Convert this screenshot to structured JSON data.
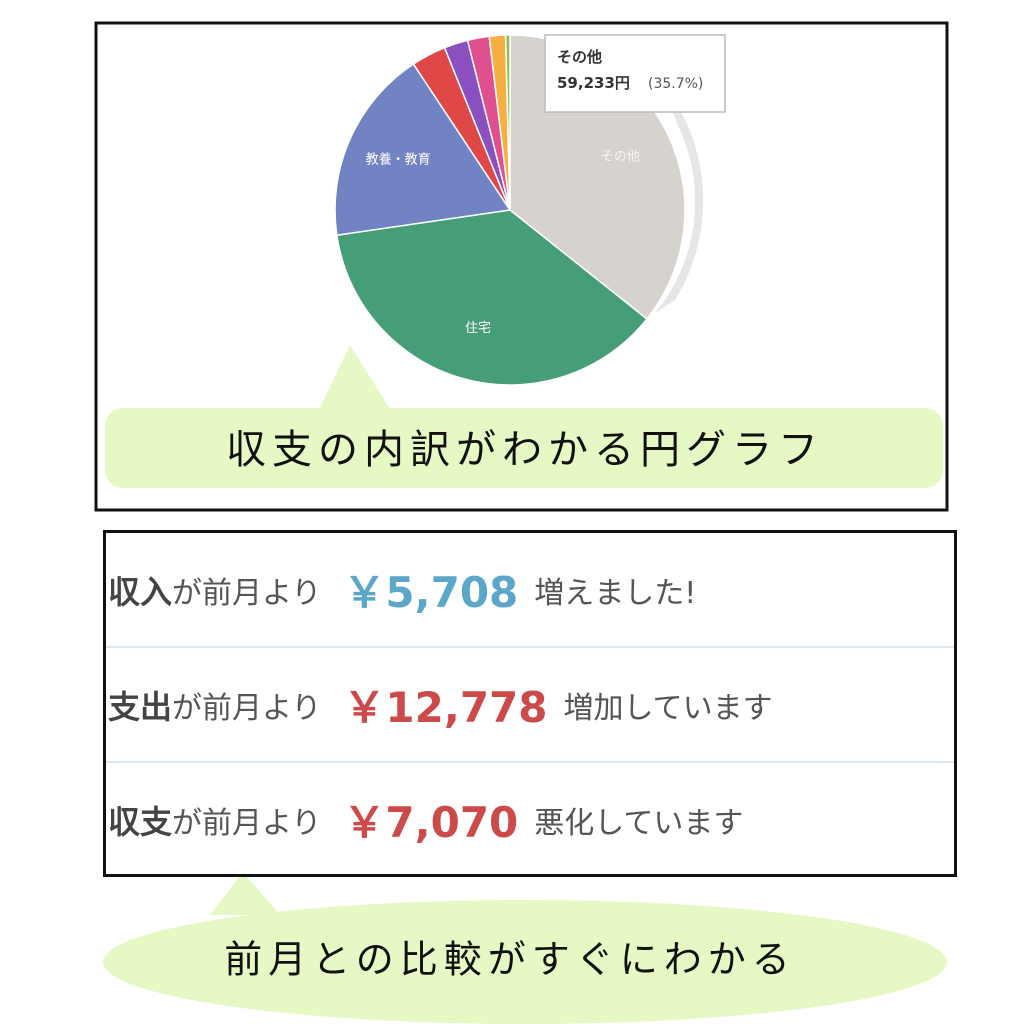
{
  "chart_data": {
    "type": "pie",
    "categories": [
      "その他",
      "住宅",
      "教養・教育",
      null,
      null,
      null,
      null,
      null
    ],
    "values": [
      35.7,
      37,
      18,
      3.2,
      2.2,
      2,
      1.5,
      0.4
    ],
    "colors": [
      "#d6d3ce",
      "#459e77",
      "#7283c3",
      "#e04848",
      "#8c4fbf",
      "#e0508f",
      "#f5b041",
      "#8cc152"
    ],
    "tooltip": {
      "title": "その他",
      "amount": "59,233円",
      "percent": "(35.7%)"
    }
  },
  "callouts": [
    "収支の内訳がわかる円グラフ",
    "前月との比較がすぐにわかる"
  ],
  "comparison": {
    "rows": [
      {
        "subject": "収入",
        "connector": "が前月より",
        "amount": "￥5,708",
        "message": "増えました!",
        "color": "#5ba6c9"
      },
      {
        "subject": "支出",
        "connector": "が前月より",
        "amount": "￥12,778",
        "message": "増加しています",
        "color": "#cc4a4a"
      },
      {
        "subject": "収支",
        "connector": "が前月より",
        "amount": "￥7,070",
        "message": "悪化しています",
        "color": "#cc4a4a"
      }
    ]
  }
}
